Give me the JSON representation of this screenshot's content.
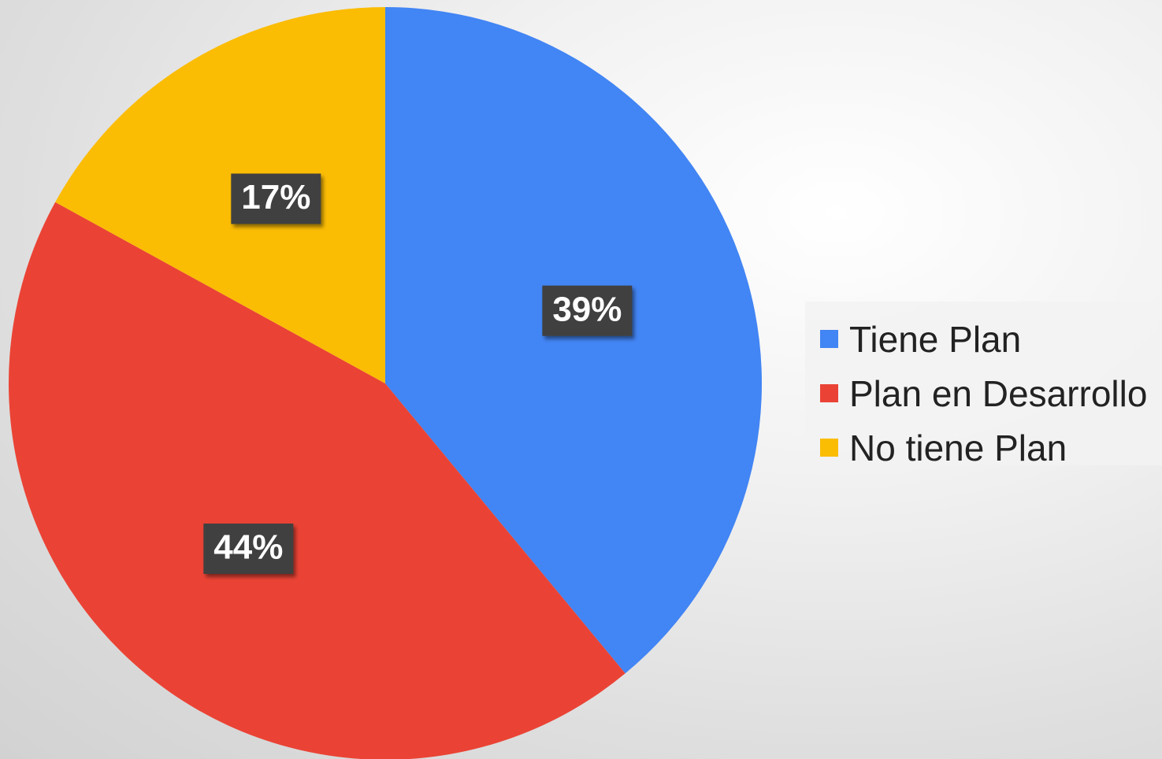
{
  "chart_data": {
    "type": "pie",
    "categories": [
      "Tiene Plan",
      "Plan en Desarrollo",
      "No tiene Plan"
    ],
    "values": [
      39,
      44,
      17
    ],
    "data_labels": [
      "39%",
      "44%",
      "17%"
    ],
    "colors": [
      "#4285F4",
      "#EA4335",
      "#FBBC04"
    ],
    "start_angle_deg": 0,
    "direction": "clockwise",
    "legend_position": "right",
    "title": ""
  }
}
